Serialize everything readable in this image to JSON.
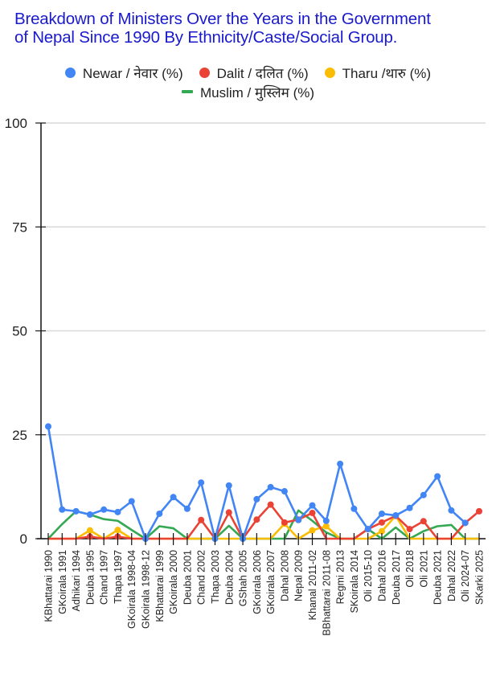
{
  "title": "Breakdown of Ministers Over the Years in the Government of Nepal Since 1990 By Ethnicity/Caste/Social Group.",
  "title_lines": [
    "Breakdown of Ministers Over the Years in the Government",
    "of Nepal Since 1990 By Ethnicity/Caste/Social Group."
  ],
  "legend": [
    {
      "label": "Newar / नेवार (%)",
      "color": "#4285f4",
      "marker": "dot"
    },
    {
      "label": "Dalit / दलित (%)",
      "color": "#ea4335",
      "marker": "dot"
    },
    {
      "label": "Tharu /थारु (%)",
      "color": "#fbbc04",
      "marker": "dot"
    },
    {
      "label": "Muslim / मुस्लिम (%)",
      "color": "#34a853",
      "marker": "line"
    }
  ],
  "chart_data": {
    "type": "line",
    "title": "Breakdown of Ministers Over the Years in the Government of Nepal Since 1990 By Ethnicity/Caste/Social Group.",
    "xlabel": "",
    "ylabel": "",
    "ylim": [
      0,
      100
    ],
    "yticks": [
      0,
      25,
      50,
      75,
      100
    ],
    "grid": true,
    "legend_position": "top",
    "categories": [
      "KBhattarai 1990",
      "GKoirala 1991",
      "Adhikari 1994",
      "Deuba 1995",
      "Chand 1997",
      "Thapa 1997",
      "GKoirala 1998-04",
      "GKoirala 1998-12",
      "KBhattarai 1999",
      "GKoirala 2000",
      "Deuba 2001",
      "Chand 2002",
      "Thapa 2003",
      "Deuba 2004",
      "GShah 2005",
      "GKoirala 2006",
      "GKoirala 2007",
      "Dahal 2008",
      "Nepal 2009",
      "Khanal 2011-02",
      "BBhattarai 2011-08",
      "Regmi 2013",
      "SKoirala 2014",
      "Oli 2015-10",
      "Dahal 2016",
      "Deuba 2017",
      "Oli 2018",
      "Oli 2021",
      "Deuba 2021",
      "Dahal 2022",
      "Oli 2024-07",
      "SKarki 2025"
    ],
    "series": [
      {
        "name": "Newar / नेवार (%)",
        "color": "#4285f4",
        "values": [
          27,
          7,
          6.6,
          5.8,
          7,
          6.4,
          9,
          0,
          6,
          10,
          7.2,
          13.5,
          0,
          12.8,
          0,
          9.5,
          12.4,
          11.4,
          4.5,
          8,
          4.3,
          18,
          7.2,
          2.3,
          6,
          5.6,
          7.4,
          10.5,
          15,
          6.8,
          3.8,
          null
        ]
      },
      {
        "name": "Dalit / दलित (%)",
        "color": "#ea4335",
        "values": [
          0,
          0,
          0,
          0.5,
          0,
          0.5,
          0,
          0,
          0,
          0,
          0,
          4.5,
          0,
          6.3,
          0,
          4.6,
          8.2,
          3.9,
          4.6,
          6.2,
          0,
          0,
          0,
          2.3,
          3.9,
          5.5,
          2.3,
          4.2,
          0,
          0,
          3.8,
          6.6
        ]
      },
      {
        "name": "Tharu /थारु (%)",
        "color": "#fbbc04",
        "values": [
          0,
          0,
          0,
          2,
          0,
          2.1,
          0,
          0,
          0,
          0,
          0,
          0,
          0,
          0,
          0,
          0,
          0,
          3.6,
          0,
          2,
          3,
          0,
          0,
          0,
          1.8,
          5.5,
          0,
          0,
          0,
          0,
          0,
          0
        ]
      },
      {
        "name": "Muslim / मुस्लिम (%)",
        "color": "#34a853",
        "values": [
          0,
          3.5,
          6.6,
          5.8,
          4.7,
          4.3,
          2.1,
          0,
          3,
          2.5,
          0,
          0,
          0,
          3.1,
          0,
          0,
          0,
          0,
          6.8,
          4.3,
          1.5,
          0,
          0,
          2.3,
          0,
          2.7,
          0,
          1.8,
          3,
          3.3,
          0,
          0
        ]
      }
    ]
  }
}
